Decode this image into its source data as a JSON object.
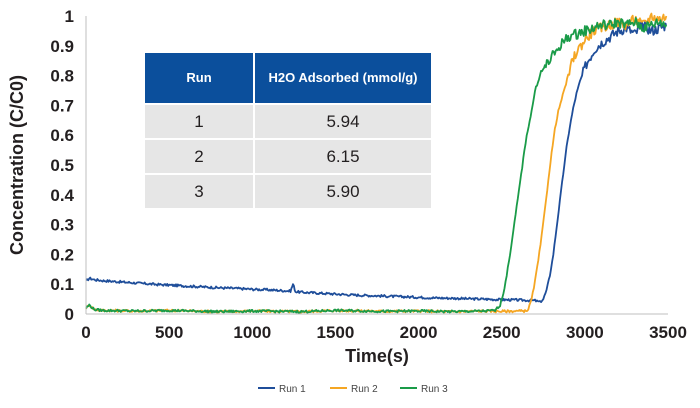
{
  "chart_data": {
    "type": "line",
    "xlabel": "Time(s)",
    "ylabel": "Concentration (C/C0)",
    "xlim": [
      0,
      3500
    ],
    "ylim": [
      0,
      1
    ],
    "xticks": [
      0,
      500,
      1000,
      1500,
      2000,
      2500,
      3000,
      3500
    ],
    "yticks": [
      0,
      0.1,
      0.2,
      0.3,
      0.4,
      0.5,
      0.6,
      0.7,
      0.8,
      0.9,
      1
    ],
    "ytick_labels": [
      "0",
      "0.1",
      "0.2",
      "0.3",
      "0.4",
      "0.5",
      "0.6",
      "0.7",
      "0.8",
      "0.9",
      "1"
    ],
    "grid": false,
    "legend_position": "bottom-center",
    "series": [
      {
        "name": "Run 1",
        "color": "#1f4e9a",
        "x": [
          0,
          20,
          50,
          100,
          200,
          300,
          400,
          500,
          600,
          700,
          800,
          900,
          1000,
          1100,
          1200,
          1230,
          1245,
          1260,
          1300,
          1400,
          1500,
          1600,
          1700,
          1800,
          1900,
          2000,
          2100,
          2200,
          2300,
          2400,
          2500,
          2600,
          2650,
          2700,
          2730,
          2750,
          2770,
          2790,
          2810,
          2830,
          2850,
          2870,
          2890,
          2910,
          2930,
          2950,
          2970,
          2990,
          3010,
          3030,
          3060,
          3100,
          3150,
          3200,
          3250,
          3300,
          3350,
          3400,
          3450,
          3490
        ],
        "y": [
          0.11,
          0.12,
          0.115,
          0.112,
          0.108,
          0.104,
          0.1,
          0.097,
          0.094,
          0.091,
          0.088,
          0.086,
          0.083,
          0.081,
          0.078,
          0.077,
          0.1,
          0.075,
          0.073,
          0.07,
          0.067,
          0.064,
          0.062,
          0.06,
          0.058,
          0.056,
          0.054,
          0.053,
          0.051,
          0.05,
          0.048,
          0.047,
          0.046,
          0.045,
          0.04,
          0.05,
          0.08,
          0.13,
          0.2,
          0.29,
          0.38,
          0.47,
          0.56,
          0.63,
          0.69,
          0.74,
          0.78,
          0.81,
          0.84,
          0.86,
          0.89,
          0.91,
          0.93,
          0.95,
          0.96,
          0.94,
          0.97,
          0.95,
          0.96,
          0.97
        ]
      },
      {
        "name": "Run 2",
        "color": "#f5a623",
        "x": [
          0,
          20,
          50,
          100,
          300,
          500,
          800,
          1000,
          1300,
          1500,
          1800,
          2000,
          2200,
          2400,
          2500,
          2600,
          2640,
          2660,
          2680,
          2700,
          2720,
          2740,
          2760,
          2780,
          2800,
          2820,
          2840,
          2860,
          2880,
          2900,
          2920,
          2950,
          3000,
          3050,
          3100,
          3150,
          3200,
          3250,
          3300,
          3350,
          3400,
          3450,
          3490
        ],
        "y": [
          0.02,
          0.03,
          0.015,
          0.012,
          0.01,
          0.012,
          0.008,
          0.01,
          0.008,
          0.012,
          0.009,
          0.01,
          0.008,
          0.01,
          0.009,
          0.01,
          0.01,
          0.015,
          0.05,
          0.11,
          0.18,
          0.26,
          0.35,
          0.45,
          0.54,
          0.62,
          0.68,
          0.72,
          0.76,
          0.8,
          0.84,
          0.88,
          0.92,
          0.95,
          0.96,
          0.97,
          0.98,
          0.97,
          0.99,
          0.97,
          1.0,
          0.99,
          1.0
        ]
      },
      {
        "name": "Run 3",
        "color": "#1a9b48",
        "x": [
          0,
          20,
          50,
          100,
          300,
          500,
          800,
          1000,
          1300,
          1500,
          1800,
          2000,
          2200,
          2400,
          2460,
          2490,
          2510,
          2530,
          2550,
          2570,
          2590,
          2610,
          2630,
          2650,
          2680,
          2700,
          2730,
          2760,
          2800,
          2850,
          2900,
          2950,
          3000,
          3050,
          3100,
          3150,
          3200,
          3250,
          3300,
          3350,
          3400,
          3450,
          3490
        ],
        "y": [
          0.02,
          0.03,
          0.015,
          0.012,
          0.01,
          0.012,
          0.008,
          0.01,
          0.008,
          0.012,
          0.009,
          0.01,
          0.008,
          0.01,
          0.012,
          0.03,
          0.07,
          0.13,
          0.2,
          0.28,
          0.36,
          0.44,
          0.52,
          0.6,
          0.68,
          0.75,
          0.8,
          0.83,
          0.86,
          0.9,
          0.93,
          0.94,
          0.95,
          0.96,
          0.97,
          0.97,
          0.98,
          0.97,
          0.98,
          0.96,
          0.97,
          0.98,
          0.97
        ]
      }
    ]
  },
  "table": {
    "headers": [
      "Run",
      "H2O Adsorbed (mmol/g)"
    ],
    "rows": [
      [
        "1",
        "5.94"
      ],
      [
        "2",
        "6.15"
      ],
      [
        "3",
        "5.90"
      ]
    ],
    "header_color": "#0b4f9c",
    "row_color": "#e6e6e6"
  }
}
